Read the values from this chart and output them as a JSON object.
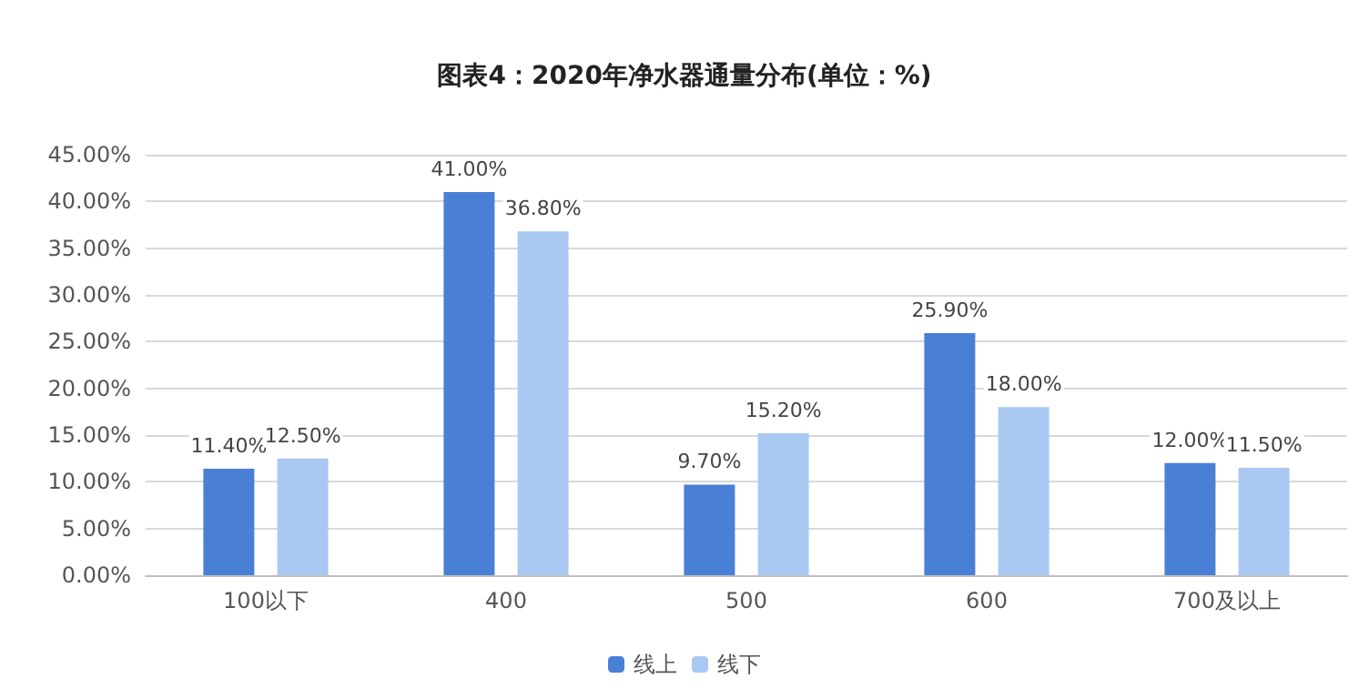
{
  "chart_data": {
    "type": "bar",
    "title": "图表4：2020年净水器通量分布(单位：%)",
    "categories": [
      "100以下",
      "400",
      "500",
      "600",
      "700及以上"
    ],
    "series": [
      {
        "name": "线上",
        "color": "#4a7fd6",
        "values": [
          11.4,
          41,
          9.7,
          25.9,
          12
        ],
        "value_labels": [
          "11.40%",
          "41.00%",
          "9.70%",
          "25.90%",
          "12.00%"
        ]
      },
      {
        "name": "线下",
        "color": "#a9c9f2",
        "values": [
          12.5,
          36.8,
          15.2,
          18,
          11.5
        ],
        "value_labels": [
          "12.50%",
          "36.80%",
          "15.20%",
          "18.00%",
          "11.50%"
        ]
      }
    ],
    "ylim": [
      0,
      45
    ],
    "yticks": [
      {
        "value": 0,
        "label": "0.00%"
      },
      {
        "value": 5,
        "label": "5.00%"
      },
      {
        "value": 10,
        "label": "10.00%"
      },
      {
        "value": 15,
        "label": "15.00%"
      },
      {
        "value": 20,
        "label": "20.00%"
      },
      {
        "value": 25,
        "label": "25.00%"
      },
      {
        "value": 30,
        "label": "30.00%"
      },
      {
        "value": 35,
        "label": "35.00%"
      },
      {
        "value": 40,
        "label": "40.00%"
      },
      {
        "value": 45,
        "label": "45.00%"
      }
    ],
    "grid": "y",
    "legend": "bottom"
  }
}
